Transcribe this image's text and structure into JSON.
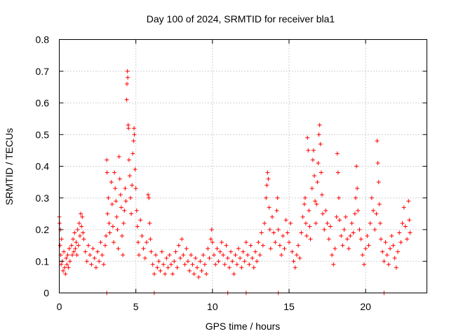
{
  "chart_data": {
    "type": "scatter",
    "title": "Day 100 of 2024, SRMTID for receiver bla1",
    "xlabel": "GPS time / hours",
    "ylabel": "SRMTID / TECUs",
    "xlim": [
      0,
      24
    ],
    "ylim": [
      0,
      0.8
    ],
    "xticks": [
      0,
      5,
      10,
      15,
      20
    ],
    "yticks": [
      0,
      0.1,
      0.2,
      0.3,
      0.4,
      0.5,
      0.6,
      0.7,
      0.8
    ],
    "xtick_labels": [
      "0",
      "5",
      "10",
      "15",
      "20"
    ],
    "ytick_labels": [
      "0",
      "0.1",
      "0.2",
      "0.3",
      "0.4",
      "0.5",
      "0.6",
      "0.7",
      "0.8"
    ],
    "grid": true,
    "marker": "+",
    "series": [
      {
        "name": "SRMTID",
        "color": "#ff0000",
        "points": [
          [
            0.0,
            0.24
          ],
          [
            0.02,
            0.22
          ],
          [
            0.05,
            0.15
          ],
          [
            0.08,
            0.2
          ],
          [
            0.1,
            0.12
          ],
          [
            0.12,
            0.09
          ],
          [
            0.15,
            0.17
          ],
          [
            0.2,
            0.1
          ],
          [
            0.25,
            0.07
          ],
          [
            0.3,
            0.13
          ],
          [
            0.35,
            0.08
          ],
          [
            0.4,
            0.06
          ],
          [
            0.45,
            0.11
          ],
          [
            0.5,
            0.09
          ],
          [
            0.55,
            0.12
          ],
          [
            0.6,
            0.08
          ],
          [
            0.65,
            0.14
          ],
          [
            0.7,
            0.1
          ],
          [
            0.8,
            0.15
          ],
          [
            0.85,
            0.12
          ],
          [
            0.9,
            0.17
          ],
          [
            0.95,
            0.13
          ],
          [
            1.0,
            0.19
          ],
          [
            1.05,
            0.14
          ],
          [
            1.1,
            0.16
          ],
          [
            1.15,
            0.12
          ],
          [
            1.2,
            0.2
          ],
          [
            1.25,
            0.15
          ],
          [
            1.3,
            0.22
          ],
          [
            1.35,
            0.18
          ],
          [
            1.4,
            0.25
          ],
          [
            1.45,
            0.21
          ],
          [
            1.5,
            0.24
          ],
          [
            1.55,
            0.19
          ],
          [
            1.6,
            0.17
          ],
          [
            1.7,
            0.13
          ],
          [
            1.8,
            0.1
          ],
          [
            1.9,
            0.15
          ],
          [
            2.0,
            0.12
          ],
          [
            2.1,
            0.09
          ],
          [
            2.2,
            0.14
          ],
          [
            2.3,
            0.11
          ],
          [
            2.4,
            0.08
          ],
          [
            2.5,
            0.13
          ],
          [
            2.6,
            0.1
          ],
          [
            2.7,
            0.16
          ],
          [
            2.8,
            0.12
          ],
          [
            2.9,
            0.09
          ],
          [
            3.0,
            0.15
          ],
          [
            3.05,
            0.18
          ],
          [
            3.1,
            0.42
          ],
          [
            3.12,
            0.38
          ],
          [
            3.15,
            0.25
          ],
          [
            3.2,
            0.3
          ],
          [
            3.25,
            0.22
          ],
          [
            3.3,
            0.19
          ],
          [
            3.4,
            0.35
          ],
          [
            3.45,
            0.28
          ],
          [
            3.5,
            0.21
          ],
          [
            3.55,
            0.16
          ],
          [
            3.6,
            0.38
          ],
          [
            3.65,
            0.33
          ],
          [
            3.7,
            0.29
          ],
          [
            3.75,
            0.24
          ],
          [
            3.8,
            0.2
          ],
          [
            3.85,
            0.14
          ],
          [
            3.9,
            0.43
          ],
          [
            3.95,
            0.36
          ],
          [
            4.0,
            0.31
          ],
          [
            4.05,
            0.27
          ],
          [
            4.1,
            0.18
          ],
          [
            4.15,
            0.12
          ],
          [
            4.2,
            0.22
          ],
          [
            4.25,
            0.26
          ],
          [
            4.3,
            0.33
          ],
          [
            4.35,
            0.29
          ],
          [
            4.4,
            0.61
          ],
          [
            4.42,
            0.66
          ],
          [
            4.45,
            0.7
          ],
          [
            4.47,
            0.68
          ],
          [
            4.5,
            0.53
          ],
          [
            4.52,
            0.52
          ],
          [
            4.55,
            0.42
          ],
          [
            4.6,
            0.37
          ],
          [
            4.65,
            0.3
          ],
          [
            4.7,
            0.25
          ],
          [
            4.75,
            0.34
          ],
          [
            4.8,
            0.44
          ],
          [
            4.85,
            0.48
          ],
          [
            4.88,
            0.52
          ],
          [
            4.9,
            0.5
          ],
          [
            4.95,
            0.39
          ],
          [
            5.0,
            0.33
          ],
          [
            5.05,
            0.26
          ],
          [
            5.1,
            0.21
          ],
          [
            5.15,
            0.16
          ],
          [
            5.2,
            0.12
          ],
          [
            5.3,
            0.23
          ],
          [
            5.4,
            0.18
          ],
          [
            5.5,
            0.14
          ],
          [
            5.6,
            0.11
          ],
          [
            5.7,
            0.16
          ],
          [
            5.8,
            0.31
          ],
          [
            5.85,
            0.3
          ],
          [
            5.9,
            0.22
          ],
          [
            5.95,
            0.17
          ],
          [
            6.0,
            0.13
          ],
          [
            6.1,
            0.09
          ],
          [
            6.2,
            0.06
          ],
          [
            6.3,
            0.12
          ],
          [
            6.4,
            0.08
          ],
          [
            6.5,
            0.1
          ],
          [
            6.6,
            0.07
          ],
          [
            6.7,
            0.13
          ],
          [
            6.8,
            0.09
          ],
          [
            6.9,
            0.06
          ],
          [
            7.0,
            0.11
          ],
          [
            7.1,
            0.08
          ],
          [
            7.2,
            0.12
          ],
          [
            7.3,
            0.09
          ],
          [
            7.4,
            0.06
          ],
          [
            7.5,
            0.1
          ],
          [
            7.6,
            0.13
          ],
          [
            7.7,
            0.08
          ],
          [
            7.8,
            0.15
          ],
          [
            7.9,
            0.11
          ],
          [
            8.0,
            0.17
          ],
          [
            8.1,
            0.12
          ],
          [
            8.2,
            0.09
          ],
          [
            8.3,
            0.14
          ],
          [
            8.4,
            0.1
          ],
          [
            8.5,
            0.07
          ],
          [
            8.6,
            0.12
          ],
          [
            8.7,
            0.09
          ],
          [
            8.8,
            0.06
          ],
          [
            8.9,
            0.11
          ],
          [
            9.0,
            0.08
          ],
          [
            9.1,
            0.05
          ],
          [
            9.2,
            0.1
          ],
          [
            9.3,
            0.07
          ],
          [
            9.4,
            0.12
          ],
          [
            9.5,
            0.09
          ],
          [
            9.6,
            0.06
          ],
          [
            9.7,
            0.14
          ],
          [
            9.8,
            0.11
          ],
          [
            9.9,
            0.17
          ],
          [
            9.95,
            0.2
          ],
          [
            10.0,
            0.16
          ],
          [
            10.1,
            0.12
          ],
          [
            10.2,
            0.09
          ],
          [
            10.3,
            0.14
          ],
          [
            10.4,
            0.1
          ],
          [
            10.5,
            0.13
          ],
          [
            10.6,
            0.16
          ],
          [
            10.7,
            0.12
          ],
          [
            10.8,
            0.09
          ],
          [
            10.9,
            0.15
          ],
          [
            11.0,
            0.11
          ],
          [
            11.1,
            0.08
          ],
          [
            11.2,
            0.13
          ],
          [
            11.3,
            0.1
          ],
          [
            11.4,
            0.06
          ],
          [
            11.5,
            0.12
          ],
          [
            11.6,
            0.09
          ],
          [
            11.7,
            0.14
          ],
          [
            11.8,
            0.11
          ],
          [
            11.9,
            0.08
          ],
          [
            12.0,
            0.13
          ],
          [
            12.1,
            0.1
          ],
          [
            12.2,
            0.16
          ],
          [
            12.3,
            0.12
          ],
          [
            12.4,
            0.09
          ],
          [
            12.5,
            0.15
          ],
          [
            12.6,
            0.11
          ],
          [
            12.7,
            0.08
          ],
          [
            12.8,
            0.13
          ],
          [
            12.9,
            0.1
          ],
          [
            13.0,
            0.16
          ],
          [
            13.1,
            0.12
          ],
          [
            13.2,
            0.19
          ],
          [
            13.3,
            0.15
          ],
          [
            13.4,
            0.22
          ],
          [
            13.5,
            0.3
          ],
          [
            13.55,
            0.34
          ],
          [
            13.6,
            0.38
          ],
          [
            13.65,
            0.36
          ],
          [
            13.7,
            0.27
          ],
          [
            13.75,
            0.2
          ],
          [
            13.8,
            0.14
          ],
          [
            13.9,
            0.24
          ],
          [
            14.0,
            0.19
          ],
          [
            14.1,
            0.16
          ],
          [
            14.2,
            0.26
          ],
          [
            14.25,
            0.3
          ],
          [
            14.3,
            0.2
          ],
          [
            14.4,
            0.15
          ],
          [
            14.5,
            0.12
          ],
          [
            14.6,
            0.18
          ],
          [
            14.7,
            0.14
          ],
          [
            14.8,
            0.23
          ],
          [
            14.9,
            0.19
          ],
          [
            15.0,
            0.16
          ],
          [
            15.1,
            0.22
          ],
          [
            15.2,
            0.13
          ],
          [
            15.3,
            0.1
          ],
          [
            15.4,
            0.08
          ],
          [
            15.5,
            0.12
          ],
          [
            15.6,
            0.15
          ],
          [
            15.7,
            0.11
          ],
          [
            15.8,
            0.19
          ],
          [
            15.9,
            0.24
          ],
          [
            16.0,
            0.28
          ],
          [
            16.05,
            0.3
          ],
          [
            16.1,
            0.22
          ],
          [
            16.15,
            0.18
          ],
          [
            16.2,
            0.49
          ],
          [
            16.25,
            0.45
          ],
          [
            16.3,
            0.26
          ],
          [
            16.35,
            0.21
          ],
          [
            16.4,
            0.17
          ],
          [
            16.5,
            0.33
          ],
          [
            16.55,
            0.42
          ],
          [
            16.6,
            0.45
          ],
          [
            16.65,
            0.37
          ],
          [
            16.7,
            0.29
          ],
          [
            16.75,
            0.22
          ],
          [
            16.8,
            0.28
          ],
          [
            16.85,
            0.35
          ],
          [
            16.9,
            0.41
          ],
          [
            16.95,
            0.5
          ],
          [
            17.0,
            0.53
          ],
          [
            17.05,
            0.47
          ],
          [
            17.1,
            0.38
          ],
          [
            17.15,
            0.31
          ],
          [
            17.2,
            0.25
          ],
          [
            17.3,
            0.2
          ],
          [
            17.4,
            0.26
          ],
          [
            17.5,
            0.22
          ],
          [
            17.6,
            0.17
          ],
          [
            17.7,
            0.21
          ],
          [
            17.8,
            0.12
          ],
          [
            17.9,
            0.09
          ],
          [
            18.0,
            0.14
          ],
          [
            18.1,
            0.24
          ],
          [
            18.15,
            0.44
          ],
          [
            18.2,
            0.38
          ],
          [
            18.25,
            0.3
          ],
          [
            18.3,
            0.23
          ],
          [
            18.4,
            0.18
          ],
          [
            18.5,
            0.15
          ],
          [
            18.6,
            0.2
          ],
          [
            18.7,
            0.24
          ],
          [
            18.8,
            0.17
          ],
          [
            18.9,
            0.14
          ],
          [
            19.0,
            0.18
          ],
          [
            19.1,
            0.22
          ],
          [
            19.2,
            0.19
          ],
          [
            19.3,
            0.25
          ],
          [
            19.35,
            0.3
          ],
          [
            19.4,
            0.4
          ],
          [
            19.45,
            0.33
          ],
          [
            19.5,
            0.26
          ],
          [
            19.6,
            0.2
          ],
          [
            19.7,
            0.17
          ],
          [
            19.8,
            0.12
          ],
          [
            19.9,
            0.09
          ],
          [
            20.0,
            0.14
          ],
          [
            20.1,
            0.18
          ],
          [
            20.2,
            0.15
          ],
          [
            20.3,
            0.22
          ],
          [
            20.4,
            0.3
          ],
          [
            20.5,
            0.26
          ],
          [
            20.6,
            0.2
          ],
          [
            20.7,
            0.25
          ],
          [
            20.75,
            0.48
          ],
          [
            20.8,
            0.41
          ],
          [
            20.85,
            0.35
          ],
          [
            20.9,
            0.28
          ],
          [
            20.95,
            0.22
          ],
          [
            21.0,
            0.17
          ],
          [
            21.1,
            0.13
          ],
          [
            21.2,
            0.1
          ],
          [
            21.3,
            0.16
          ],
          [
            21.4,
            0.12
          ],
          [
            21.5,
            0.09
          ],
          [
            21.6,
            0.14
          ],
          [
            21.7,
            0.18
          ],
          [
            21.8,
            0.15
          ],
          [
            21.9,
            0.11
          ],
          [
            22.0,
            0.08
          ],
          [
            22.1,
            0.13
          ],
          [
            22.2,
            0.19
          ],
          [
            22.3,
            0.16
          ],
          [
            22.4,
            0.22
          ],
          [
            22.5,
            0.27
          ],
          [
            22.6,
            0.21
          ],
          [
            22.7,
            0.17
          ],
          [
            22.8,
            0.29
          ],
          [
            22.85,
            0.23
          ],
          [
            22.9,
            0.19
          ],
          [
            3.1,
            0.0
          ],
          [
            6.2,
            0.0
          ],
          [
            11.0,
            0.0
          ],
          [
            12.2,
            0.0
          ],
          [
            14.3,
            0.0
          ],
          [
            21.2,
            0.0
          ]
        ]
      }
    ]
  }
}
